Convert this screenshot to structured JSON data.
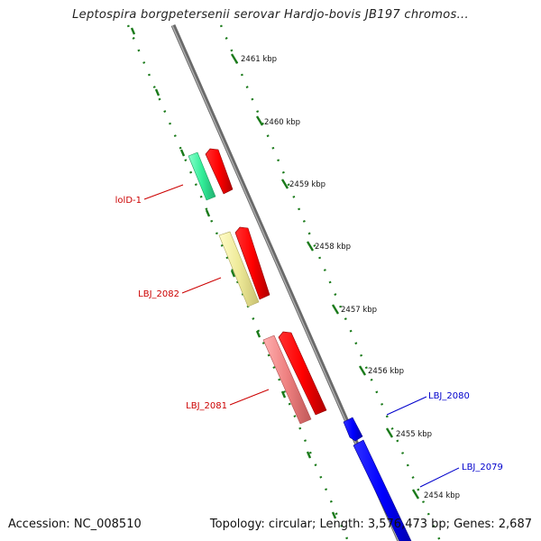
{
  "title": "Leptospira borgpetersenii serovar Hardjo-bovis JB197 chromos...",
  "footer": {
    "accession": "Accession: NC_008510",
    "summary": "Topology: circular; Length: 3,576,473 bp; Genes: 2,687"
  },
  "ruler": {
    "ticks": [
      "2461 kbp",
      "2460 kbp",
      "2459 kbp",
      "2458 kbp",
      "2457 kbp",
      "2456 kbp",
      "2455 kbp",
      "2454 kbp"
    ]
  },
  "genes": [
    {
      "name": "LBJ_2080",
      "color": "#0000cc"
    },
    {
      "name": "LBJ_2079",
      "color": "#0000cc"
    },
    {
      "name": "lolD-1",
      "color": "#cc0000"
    },
    {
      "name": "LBJ_2082",
      "color": "#cc0000"
    },
    {
      "name": "LBJ_2081",
      "color": "#cc0000"
    }
  ],
  "colors": {
    "backbone": "#8a8a8a",
    "ruler": "#1a7a1a",
    "forward_strand": "#ff0000",
    "reverse_strand": "#0000ff",
    "cog_green": "#33ee99",
    "cog_yellow": "#eeea99",
    "cog_pink": "#ee8080"
  }
}
